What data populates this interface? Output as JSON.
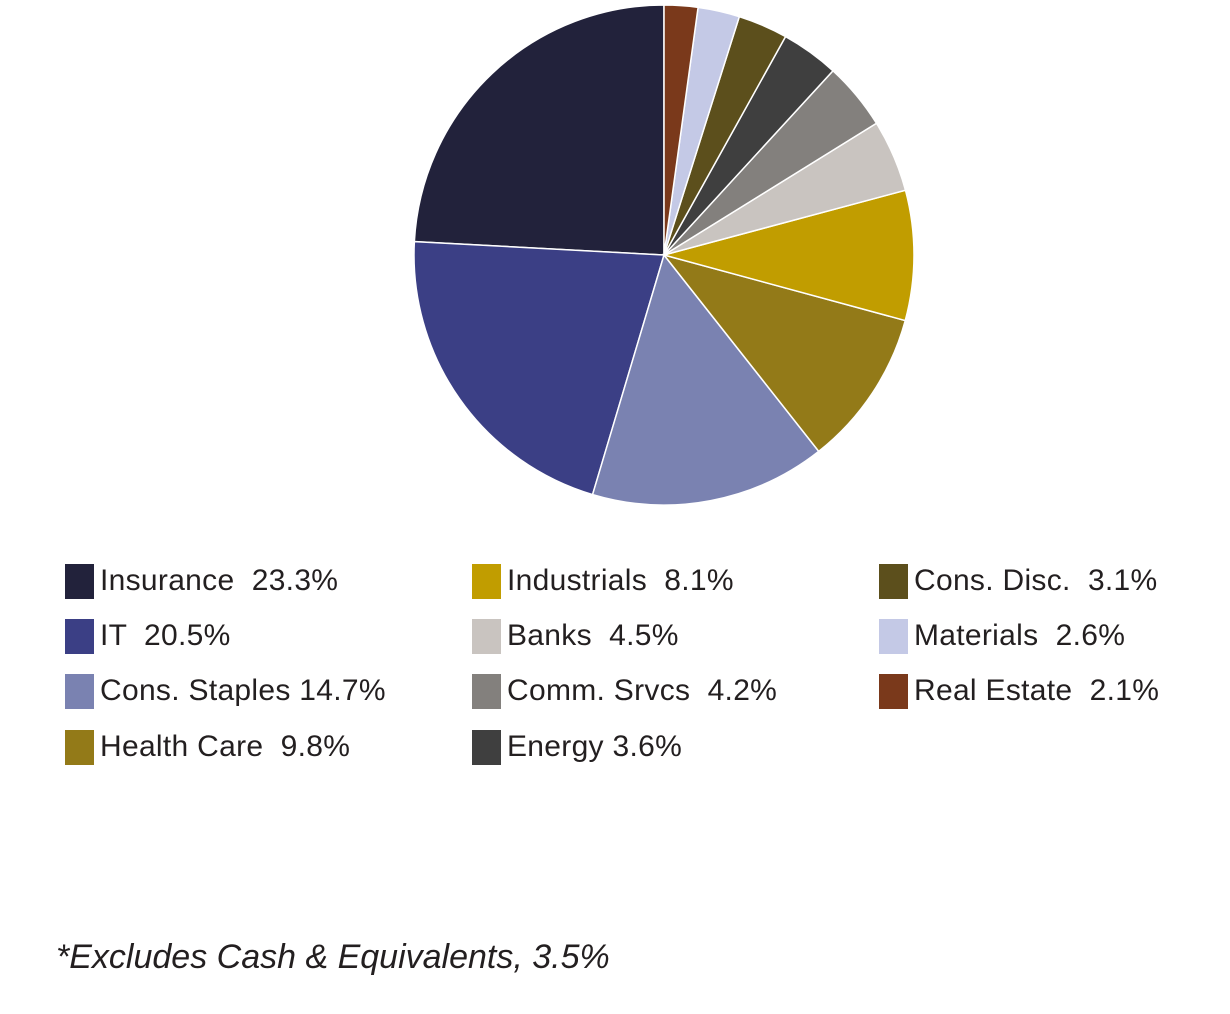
{
  "chart_data": {
    "type": "pie",
    "slices": [
      {
        "label": "Insurance",
        "value": 23.3,
        "legend_text": "Insurance  23.3%",
        "color": "#22223b"
      },
      {
        "label": "IT",
        "value": 20.5,
        "legend_text": "IT  20.5%",
        "color": "#3b3f85"
      },
      {
        "label": "Cons. Staples",
        "value": 14.7,
        "legend_text": "Cons. Staples 14.7%",
        "color": "#7a82b1"
      },
      {
        "label": "Health Care",
        "value": 9.8,
        "legend_text": "Health Care  9.8%",
        "color": "#937a18"
      },
      {
        "label": "Industrials",
        "value": 8.1,
        "legend_text": "Industrials  8.1%",
        "color": "#c19d00"
      },
      {
        "label": "Banks",
        "value": 4.5,
        "legend_text": "Banks  4.5%",
        "color": "#c9c4c0"
      },
      {
        "label": "Comm. Srvcs",
        "value": 4.2,
        "legend_text": "Comm. Srvcs  4.2%",
        "color": "#83807d"
      },
      {
        "label": "Energy",
        "value": 3.6,
        "legend_text": "Energy 3.6%",
        "color": "#3f3f3f"
      },
      {
        "label": "Cons. Disc.",
        "value": 3.1,
        "legend_text": "Cons. Disc.  3.1%",
        "color": "#5c4f1c"
      },
      {
        "label": "Materials",
        "value": 2.6,
        "legend_text": "Materials  2.6%",
        "color": "#c4c9e6"
      },
      {
        "label": "Real Estate",
        "value": 2.1,
        "legend_text": "Real Estate  2.1%",
        "color": "#7a391b"
      }
    ],
    "legend_placement": "bottom",
    "legend_columns": 3,
    "footnote": "*Excludes Cash & Equivalents, 3.5%"
  }
}
